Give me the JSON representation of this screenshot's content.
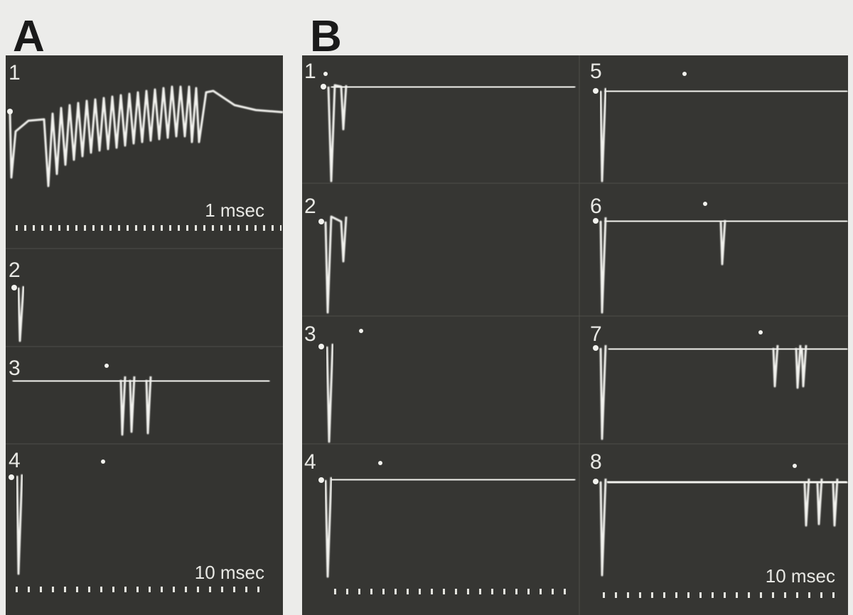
{
  "figure": {
    "panels": [
      {
        "label": "A",
        "traces": [
          "1",
          "2",
          "3",
          "4"
        ],
        "scale_labels": [
          "1 msec",
          "10 msec"
        ]
      },
      {
        "label": "B",
        "traces": [
          "1",
          "2",
          "3",
          "4",
          "5",
          "6",
          "7",
          "8"
        ],
        "scale_labels": [
          "10 msec"
        ]
      }
    ]
  }
}
